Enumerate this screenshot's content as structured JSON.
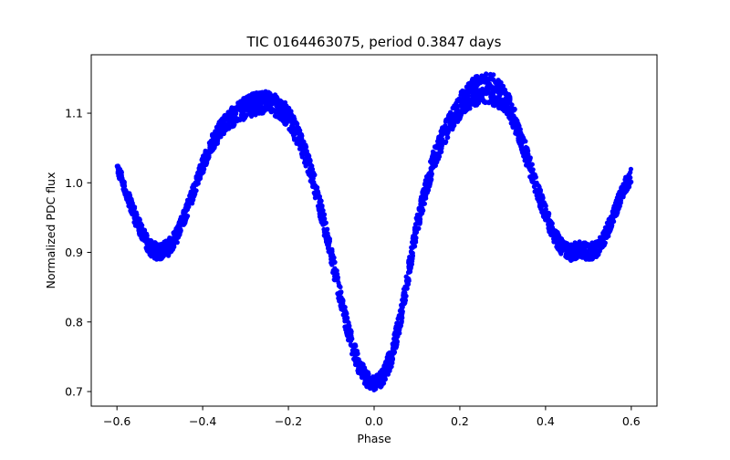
{
  "chart_data": {
    "type": "scatter",
    "title": "TIC 0164463075, period 0.3847 days",
    "xlabel": "Phase",
    "ylabel": "Normalized PDC flux",
    "xlim": [
      -0.66,
      0.66
    ],
    "ylim": [
      0.679,
      1.184
    ],
    "xticks": [
      -0.6,
      -0.4,
      -0.2,
      0.0,
      0.2,
      0.4,
      0.6
    ],
    "xtick_labels": [
      "−0.6",
      "−0.4",
      "−0.2",
      "0.0",
      "0.2",
      "0.4",
      "0.6"
    ],
    "yticks": [
      0.7,
      0.8,
      0.9,
      1.0,
      1.1
    ],
    "ytick_labels": [
      "0.7",
      "0.8",
      "0.9",
      "1.0",
      "1.1"
    ],
    "grid": false,
    "legend": "none",
    "marker_color": "#0000ff",
    "series": [
      {
        "x": [
          -0.6,
          -0.58,
          -0.56,
          -0.54,
          -0.52,
          -0.5,
          -0.48,
          -0.46,
          -0.44,
          -0.42,
          -0.4,
          -0.38,
          -0.36,
          -0.34,
          -0.32,
          -0.3,
          -0.28,
          -0.26,
          -0.25,
          -0.24,
          -0.22,
          -0.2,
          -0.18,
          -0.16,
          -0.14,
          -0.12,
          -0.1,
          -0.08,
          -0.06,
          -0.04,
          -0.02,
          0.0,
          0.02,
          0.04,
          0.06,
          0.08,
          0.1,
          0.12,
          0.14,
          0.16,
          0.18,
          0.2,
          0.22,
          0.24,
          0.26,
          0.27,
          0.28,
          0.3,
          0.32,
          0.34,
          0.36,
          0.38,
          0.4,
          0.42,
          0.44,
          0.46,
          0.48,
          0.5,
          0.52,
          0.54,
          0.56,
          0.58,
          0.6
        ],
        "y": [
          1.025,
          0.99,
          0.955,
          0.925,
          0.905,
          0.9,
          0.907,
          0.925,
          0.955,
          0.99,
          1.025,
          1.055,
          1.075,
          1.09,
          1.1,
          1.108,
          1.113,
          1.115,
          1.116,
          1.115,
          1.108,
          1.095,
          1.07,
          1.04,
          1.0,
          0.95,
          0.895,
          0.84,
          0.785,
          0.745,
          0.72,
          0.71,
          0.72,
          0.75,
          0.8,
          0.87,
          0.94,
          0.99,
          1.035,
          1.065,
          1.09,
          1.11,
          1.125,
          1.133,
          1.135,
          1.135,
          1.133,
          1.123,
          1.103,
          1.07,
          1.03,
          0.99,
          0.955,
          0.925,
          0.905,
          0.9,
          0.905,
          0.9,
          0.905,
          0.925,
          0.955,
          0.99,
          1.01
        ],
        "scatter_width": [
          0.01,
          0.01,
          0.012,
          0.012,
          0.012,
          0.012,
          0.012,
          0.012,
          0.012,
          0.012,
          0.012,
          0.012,
          0.014,
          0.014,
          0.015,
          0.016,
          0.016,
          0.016,
          0.016,
          0.016,
          0.016,
          0.016,
          0.016,
          0.016,
          0.016,
          0.016,
          0.016,
          0.016,
          0.016,
          0.016,
          0.012,
          0.01,
          0.012,
          0.016,
          0.016,
          0.016,
          0.016,
          0.016,
          0.016,
          0.016,
          0.016,
          0.018,
          0.02,
          0.022,
          0.022,
          0.022,
          0.022,
          0.02,
          0.018,
          0.016,
          0.016,
          0.014,
          0.014,
          0.012,
          0.012,
          0.012,
          0.012,
          0.012,
          0.012,
          0.012,
          0.012,
          0.012,
          0.012
        ]
      }
    ]
  }
}
